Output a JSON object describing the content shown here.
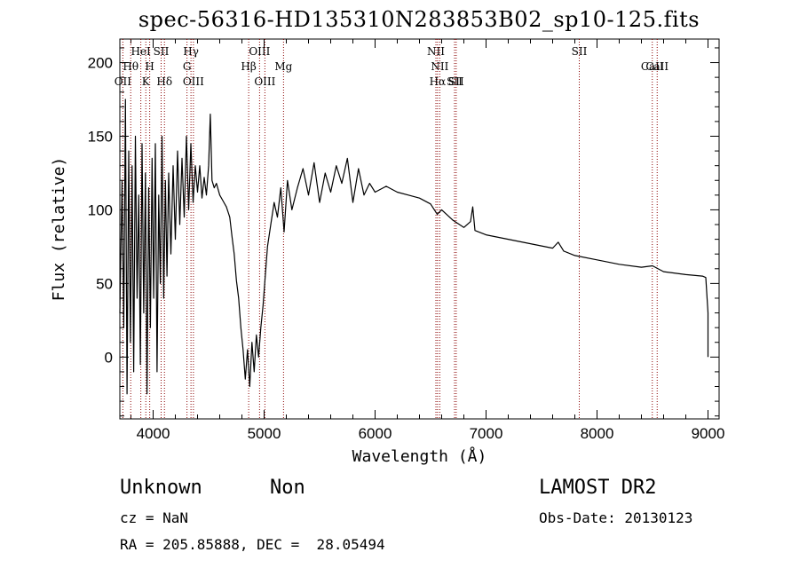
{
  "chart_data": {
    "type": "line",
    "title": "spec-56316-HD135310N283853B02_sp10-125.fits",
    "xlabel": "Wavelength (Å)",
    "ylabel": "Flux (relative)",
    "xlim": [
      3700,
      9100
    ],
    "ylim": [
      -42,
      216
    ],
    "xticks": [
      4000,
      5000,
      6000,
      7000,
      8000,
      9000
    ],
    "yticks": [
      0,
      50,
      100,
      150,
      200
    ],
    "grid": false,
    "series": [
      {
        "values": [
          [
            3700,
            30
          ],
          [
            3720,
            120
          ],
          [
            3735,
            20
          ],
          [
            3750,
            175
          ],
          [
            3765,
            -25
          ],
          [
            3780,
            140
          ],
          [
            3795,
            10
          ],
          [
            3810,
            130
          ],
          [
            3825,
            -10
          ],
          [
            3840,
            150
          ],
          [
            3855,
            40
          ],
          [
            3870,
            110
          ],
          [
            3885,
            -5
          ],
          [
            3900,
            145
          ],
          [
            3915,
            30
          ],
          [
            3930,
            125
          ],
          [
            3945,
            -25
          ],
          [
            3960,
            115
          ],
          [
            3975,
            20
          ],
          [
            3990,
            135
          ],
          [
            4005,
            40
          ],
          [
            4020,
            145
          ],
          [
            4035,
            -10
          ],
          [
            4050,
            110
          ],
          [
            4065,
            50
          ],
          [
            4080,
            150
          ],
          [
            4095,
            40
          ],
          [
            4110,
            120
          ],
          [
            4125,
            55
          ],
          [
            4140,
            125
          ],
          [
            4160,
            70
          ],
          [
            4180,
            130
          ],
          [
            4200,
            80
          ],
          [
            4220,
            140
          ],
          [
            4240,
            90
          ],
          [
            4260,
            135
          ],
          [
            4280,
            95
          ],
          [
            4300,
            150
          ],
          [
            4320,
            100
          ],
          [
            4340,
            145
          ],
          [
            4360,
            105
          ],
          [
            4380,
            130
          ],
          [
            4400,
            112
          ],
          [
            4420,
            130
          ],
          [
            4440,
            108
          ],
          [
            4460,
            122
          ],
          [
            4480,
            110
          ],
          [
            4500,
            130
          ],
          [
            4515,
            165
          ],
          [
            4530,
            120
          ],
          [
            4550,
            115
          ],
          [
            4570,
            118
          ],
          [
            4600,
            110
          ],
          [
            4630,
            106
          ],
          [
            4660,
            102
          ],
          [
            4690,
            95
          ],
          [
            4710,
            82
          ],
          [
            4730,
            70
          ],
          [
            4750,
            52
          ],
          [
            4770,
            40
          ],
          [
            4790,
            20
          ],
          [
            4810,
            5
          ],
          [
            4830,
            -15
          ],
          [
            4850,
            5
          ],
          [
            4870,
            -20
          ],
          [
            4890,
            10
          ],
          [
            4910,
            -10
          ],
          [
            4930,
            15
          ],
          [
            4950,
            0
          ],
          [
            4970,
            20
          ],
          [
            4990,
            35
          ],
          [
            5010,
            55
          ],
          [
            5030,
            75
          ],
          [
            5060,
            90
          ],
          [
            5090,
            105
          ],
          [
            5120,
            95
          ],
          [
            5150,
            115
          ],
          [
            5180,
            85
          ],
          [
            5210,
            120
          ],
          [
            5250,
            100
          ],
          [
            5300,
            115
          ],
          [
            5350,
            128
          ],
          [
            5400,
            110
          ],
          [
            5450,
            132
          ],
          [
            5500,
            105
          ],
          [
            5550,
            125
          ],
          [
            5600,
            112
          ],
          [
            5650,
            130
          ],
          [
            5700,
            118
          ],
          [
            5750,
            135
          ],
          [
            5800,
            105
          ],
          [
            5850,
            128
          ],
          [
            5900,
            110
          ],
          [
            5950,
            118
          ],
          [
            6000,
            112
          ],
          [
            6100,
            116
          ],
          [
            6200,
            112
          ],
          [
            6300,
            110
          ],
          [
            6400,
            108
          ],
          [
            6500,
            104
          ],
          [
            6560,
            97
          ],
          [
            6600,
            100
          ],
          [
            6700,
            93
          ],
          [
            6800,
            88
          ],
          [
            6860,
            92
          ],
          [
            6880,
            102
          ],
          [
            6900,
            86
          ],
          [
            7000,
            83
          ],
          [
            7200,
            80
          ],
          [
            7400,
            77
          ],
          [
            7600,
            74
          ],
          [
            7650,
            78
          ],
          [
            7700,
            72
          ],
          [
            7800,
            69
          ],
          [
            8000,
            66
          ],
          [
            8200,
            63
          ],
          [
            8400,
            61
          ],
          [
            8500,
            62
          ],
          [
            8600,
            58
          ],
          [
            8800,
            56
          ],
          [
            8950,
            55
          ],
          [
            8980,
            54
          ],
          [
            9000,
            30
          ],
          [
            9000,
            0
          ]
        ]
      }
    ],
    "line_markers": [
      {
        "label": "OII",
        "x": 3727,
        "row": 3
      },
      {
        "label": "Hθ",
        "x": 3798,
        "row": 2
      },
      {
        "label": "HeI",
        "x": 3889,
        "row": 1
      },
      {
        "label": "K",
        "x": 3934,
        "row": 3
      },
      {
        "label": "H",
        "x": 3969,
        "row": 2
      },
      {
        "label": "SII",
        "x": 4072,
        "row": 1
      },
      {
        "label": "Hδ",
        "x": 4102,
        "row": 3
      },
      {
        "label": "Hγ",
        "x": 4341,
        "row": 1
      },
      {
        "label": "G",
        "x": 4305,
        "row": 2
      },
      {
        "label": "OIII",
        "x": 4363,
        "row": 3
      },
      {
        "label": "Hβ",
        "x": 4861,
        "row": 2
      },
      {
        "label": "OIII",
        "x": 4959,
        "row": 1
      },
      {
        "label": "OIII",
        "x": 5007,
        "row": 3
      },
      {
        "label": "Mg",
        "x": 5175,
        "row": 2
      },
      {
        "label": "NII",
        "x": 6548,
        "row": 1
      },
      {
        "label": "NII",
        "x": 6583,
        "row": 2
      },
      {
        "label": "Hα",
        "x": 6563,
        "row": 3
      },
      {
        "label": "SII",
        "x": 6716,
        "row": 3
      },
      {
        "label": "SII",
        "x": 6731,
        "row": 3
      },
      {
        "label": "SII",
        "x": 7840,
        "row": 1
      },
      {
        "label": "CaII",
        "x": 8498,
        "row": 2
      },
      {
        "label": "CaII",
        "x": 8542,
        "row": 2
      }
    ],
    "colors": {
      "spectrum": "#000000",
      "marker_line": "#8b0000",
      "marker_text": "#000000"
    }
  },
  "info": {
    "class": "Unknown",
    "subclass": "Non",
    "survey": "LAMOST DR2",
    "cz": "cz = NaN",
    "obs_date": "Obs-Date: 20130123",
    "radec": "RA = 205.85888, DEC =  28.05494"
  }
}
